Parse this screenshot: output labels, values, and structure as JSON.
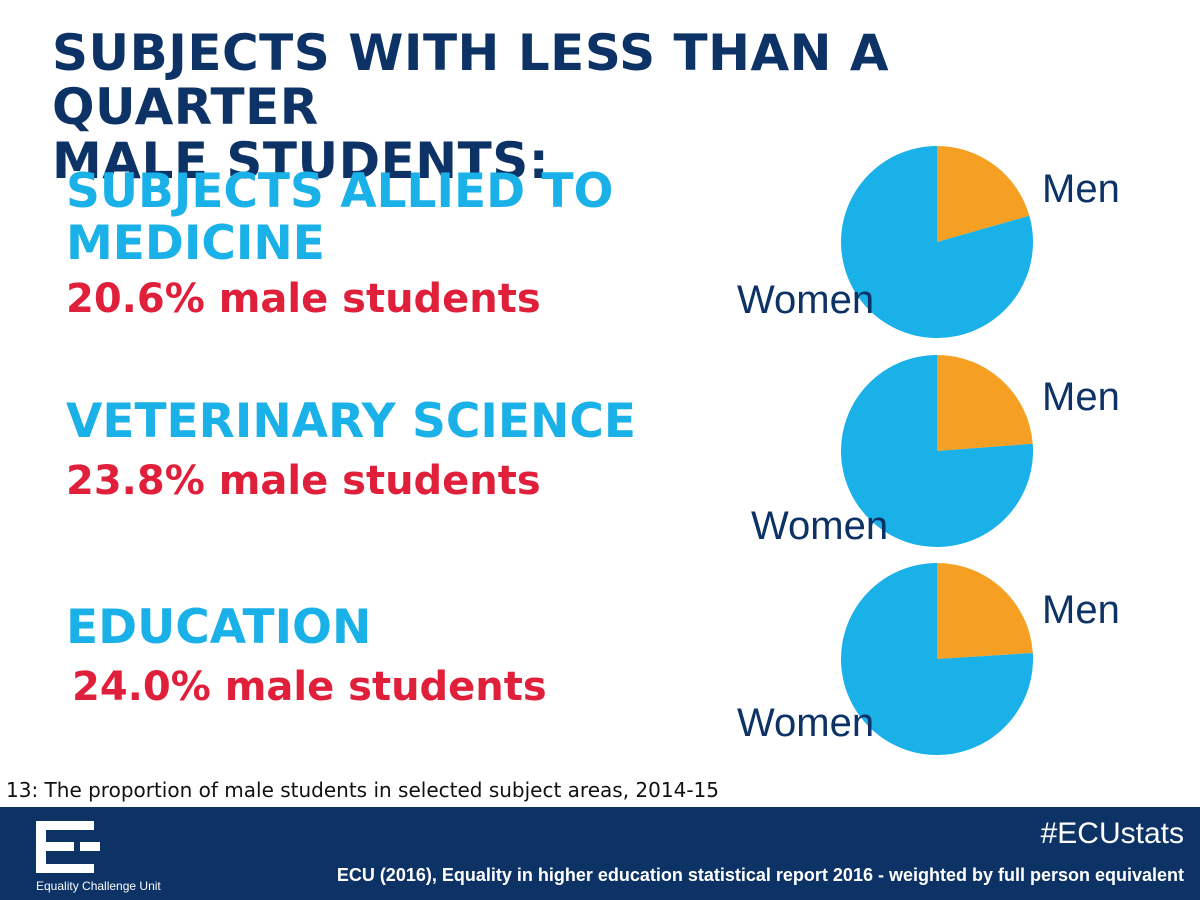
{
  "title": {
    "line1": "SUBJECTS WITH LESS THAN A QUARTER",
    "line2": "MALE STUDENTS:"
  },
  "subjects": [
    {
      "name_line1": "SUBJECTS ALLIED TO",
      "name_line2": "MEDICINE",
      "stat_text": "20.6% male students"
    },
    {
      "name_line1": "VETERINARY SCIENCE",
      "name_line2": "",
      "stat_text": "23.8% male students"
    },
    {
      "name_line1": "EDUCATION",
      "name_line2": "",
      "stat_text": "24.0% male students"
    }
  ],
  "chart_data": [
    {
      "type": "pie",
      "title": "",
      "slices": [
        {
          "label": "Men",
          "value": 20.6,
          "color": "#f5a023"
        },
        {
          "label": "Women",
          "value": 79.4,
          "color": "#1ab0e8"
        }
      ]
    },
    {
      "type": "pie",
      "title": "",
      "slices": [
        {
          "label": "Men",
          "value": 23.8,
          "color": "#f5a023"
        },
        {
          "label": "Women",
          "value": 76.2,
          "color": "#1ab0e8"
        }
      ]
    },
    {
      "type": "pie",
      "title": "",
      "slices": [
        {
          "label": "Men",
          "value": 24.0,
          "color": "#f5a023"
        },
        {
          "label": "Women",
          "value": 76.0,
          "color": "#1ab0e8"
        }
      ]
    }
  ],
  "caption": "13: The proportion of male students in selected subject areas, 2014-15",
  "footer": {
    "logo_text": "Equality Challenge Unit",
    "hashtag": "#ECUstats",
    "source": "ECU (2016), Equality in higher education statistical report 2016 - weighted by full person equivalent"
  },
  "colors": {
    "navy": "#0d3266",
    "sky_blue": "#1ab0e8",
    "red": "#e0203a",
    "orange": "#f5a023"
  }
}
